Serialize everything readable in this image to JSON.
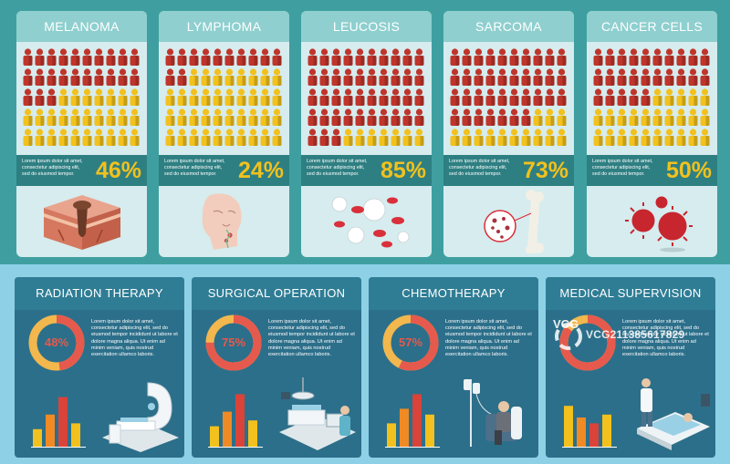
{
  "top_cards": [
    {
      "title": "MELANOMA",
      "percent": "46%",
      "text": "Lorem ipsum dolor sit amet, consectetur adipiscing elit, sed do eiusmod tempor.",
      "red_share": 0.46,
      "illustration": "skin-icon"
    },
    {
      "title": "LYMPHOMA",
      "percent": "24%",
      "text": "Lorem ipsum dolor sit amet, consectetur adipiscing elit, sed do eiusmod tempor.",
      "red_share": 0.24,
      "illustration": "head-icon"
    },
    {
      "title": "LEUCOSIS",
      "percent": "85%",
      "text": "Lorem ipsum dolor sit amet, consectetur adipiscing elit, sed do eiusmod tempor.",
      "red_share": 0.85,
      "illustration": "blood-cells-icon"
    },
    {
      "title": "SARCOMA",
      "percent": "73%",
      "text": "Lorem ipsum dolor sit amet, consectetur adipiscing elit, sed do eiusmod tempor.",
      "red_share": 0.73,
      "illustration": "bone-icon"
    },
    {
      "title": "CANCER CELLS",
      "percent": "50%",
      "text": "Lorem ipsum dolor sit amet, consectetur adipiscing elit, sed do eiusmod tempor.",
      "red_share": 0.5,
      "illustration": "virus-icon"
    }
  ],
  "bottom_cards": [
    {
      "title": "RADIATION THERAPY",
      "percent": "48%",
      "value": 0.48,
      "text": "Lorem ipsum dolor sit amet, consectetur adipiscing elit, sed do eiusmod tempor incididunt ut labore et dolore magna aliqua. Ut enim ad minim veniam, quis nostrud exercitation ullamco laboris.",
      "bars": [
        0.3,
        0.55,
        0.85,
        0.4
      ],
      "illustration": "radiation-machine-icon"
    },
    {
      "title": "SURGICAL OPERATION",
      "percent": "75%",
      "value": 0.75,
      "text": "Lorem ipsum dolor sit amet, consectetur adipiscing elit, sed do eiusmod tempor incididunt ut labore et dolore magna aliqua. Ut enim ad minim veniam, quis nostrud exercitation ullamco laboris.",
      "bars": [
        0.35,
        0.6,
        0.9,
        0.45
      ],
      "illustration": "surgery-room-icon"
    },
    {
      "title": "CHEMOTHERAPY",
      "percent": "57%",
      "value": 0.57,
      "text": "Lorem ipsum dolor sit amet, consectetur adipiscing elit, sed do eiusmod tempor incididunt ut labore et dolore magna aliqua. Ut enim ad minim veniam, quis nostrud exercitation ullamco laboris.",
      "bars": [
        0.4,
        0.65,
        0.9,
        0.55
      ],
      "illustration": "iv-drip-patient-icon"
    },
    {
      "title": "MEDICAL SUPERVISION",
      "percent": "",
      "value": 0.85,
      "text": "Lorem ipsum dolor sit amet, consectetur adipiscing elit, sed do eiusmod tempor incididunt ut labore et dolore magna aliqua. Ut enim ad minim veniam, quis nostrud exercitation ullamco laboris.",
      "bars": [
        0.7,
        0.5,
        0.4,
        0.55
      ],
      "illustration": "hospital-bed-icon"
    }
  ],
  "watermark": {
    "brand": "VCG",
    "code": "VCG211385617829"
  },
  "colors": {
    "red": "#c0352b",
    "yellow": "#f2c11d",
    "donut_red": "#e55a4d",
    "bar_yellow": "#f2c11d",
    "bar_orange": "#f08a24",
    "bar_red": "#d9433a"
  }
}
